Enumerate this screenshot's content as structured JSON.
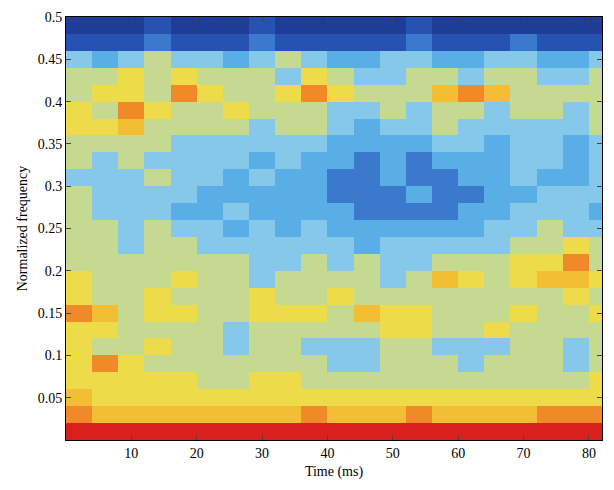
{
  "chart_data": {
    "type": "heatmap",
    "x_label": "Time (ms)",
    "y_label": "Normalized frequency",
    "x": [
      2,
      6,
      10,
      14,
      18,
      22,
      26,
      30,
      34,
      38,
      42,
      46,
      50,
      54,
      58,
      62,
      66,
      70,
      74,
      78,
      82
    ],
    "y": [
      0.01,
      0.03,
      0.05,
      0.07,
      0.09,
      0.11,
      0.13,
      0.15,
      0.17,
      0.19,
      0.21,
      0.23,
      0.25,
      0.27,
      0.29,
      0.31,
      0.33,
      0.35,
      0.37,
      0.39,
      0.41,
      0.43,
      0.45,
      0.47,
      0.49
    ],
    "cells": [
      [
        10,
        10,
        10,
        10,
        10,
        10,
        10,
        10,
        10,
        10,
        10,
        10,
        10,
        10,
        10,
        10,
        10,
        10,
        10,
        10,
        10
      ],
      [
        8,
        7,
        7,
        7,
        7,
        7,
        7,
        7,
        7,
        8,
        7,
        7,
        7,
        8,
        7,
        7,
        7,
        7,
        8,
        8,
        8
      ],
      [
        7,
        6,
        6,
        6,
        6,
        6,
        6,
        6,
        6,
        6,
        6,
        6,
        6,
        6,
        6,
        6,
        6,
        6,
        6,
        6,
        6
      ],
      [
        6,
        6,
        6,
        6,
        6,
        5,
        5,
        6,
        6,
        5,
        5,
        5,
        5,
        5,
        5,
        5,
        5,
        5,
        5,
        5,
        6
      ],
      [
        6,
        8,
        6,
        5,
        5,
        5,
        5,
        5,
        5,
        5,
        4,
        4,
        5,
        5,
        5,
        4,
        5,
        5,
        5,
        4,
        5
      ],
      [
        6,
        5,
        5,
        6,
        5,
        5,
        4,
        5,
        5,
        4,
        4,
        4,
        5,
        5,
        4,
        4,
        4,
        5,
        5,
        4,
        5
      ],
      [
        6,
        6,
        5,
        5,
        5,
        5,
        4,
        5,
        5,
        5,
        5,
        5,
        6,
        6,
        5,
        5,
        6,
        5,
        5,
        5,
        5
      ],
      [
        8,
        7,
        5,
        6,
        6,
        5,
        5,
        6,
        6,
        6,
        5,
        7,
        6,
        6,
        5,
        5,
        5,
        6,
        5,
        5,
        6
      ],
      [
        6,
        5,
        5,
        6,
        5,
        5,
        5,
        6,
        5,
        5,
        6,
        5,
        5,
        5,
        5,
        5,
        5,
        5,
        5,
        6,
        5
      ],
      [
        6,
        5,
        5,
        5,
        6,
        5,
        5,
        4,
        5,
        5,
        5,
        5,
        4,
        5,
        7,
        6,
        5,
        6,
        7,
        7,
        6
      ],
      [
        5,
        5,
        5,
        5,
        5,
        5,
        5,
        4,
        4,
        5,
        4,
        5,
        4,
        4,
        5,
        5,
        5,
        6,
        6,
        8,
        5
      ],
      [
        5,
        5,
        4,
        5,
        5,
        4,
        4,
        4,
        4,
        4,
        4,
        3,
        4,
        4,
        4,
        4,
        4,
        5,
        5,
        6,
        5
      ],
      [
        5,
        5,
        4,
        5,
        4,
        4,
        3,
        4,
        3,
        4,
        3,
        3,
        3,
        3,
        3,
        3,
        4,
        4,
        5,
        4,
        4
      ],
      [
        5,
        4,
        4,
        4,
        3,
        3,
        4,
        3,
        3,
        3,
        3,
        2,
        2,
        2,
        2,
        3,
        3,
        4,
        4,
        4,
        3
      ],
      [
        5,
        4,
        4,
        4,
        4,
        3,
        3,
        3,
        3,
        3,
        2,
        2,
        2,
        3,
        2,
        2,
        3,
        3,
        4,
        4,
        4
      ],
      [
        4,
        4,
        4,
        5,
        4,
        4,
        3,
        4,
        3,
        3,
        2,
        2,
        3,
        2,
        2,
        3,
        3,
        4,
        3,
        3,
        4
      ],
      [
        5,
        4,
        5,
        4,
        4,
        4,
        4,
        3,
        4,
        3,
        3,
        2,
        3,
        2,
        3,
        3,
        3,
        4,
        4,
        3,
        4
      ],
      [
        5,
        5,
        5,
        5,
        4,
        4,
        4,
        4,
        4,
        4,
        3,
        3,
        3,
        3,
        4,
        4,
        3,
        4,
        4,
        3,
        4
      ],
      [
        6,
        6,
        7,
        5,
        5,
        5,
        5,
        4,
        5,
        5,
        4,
        3,
        4,
        4,
        5,
        4,
        4,
        4,
        4,
        4,
        5
      ],
      [
        6,
        5,
        8,
        6,
        5,
        5,
        6,
        5,
        5,
        5,
        4,
        4,
        5,
        4,
        5,
        5,
        4,
        5,
        5,
        4,
        5
      ],
      [
        5,
        6,
        6,
        5,
        8,
        6,
        5,
        5,
        6,
        8,
        6,
        5,
        5,
        5,
        7,
        8,
        7,
        5,
        5,
        5,
        5
      ],
      [
        5,
        5,
        6,
        5,
        6,
        5,
        5,
        5,
        4,
        6,
        5,
        4,
        4,
        5,
        5,
        4,
        5,
        5,
        4,
        4,
        5
      ],
      [
        4,
        3,
        4,
        5,
        4,
        4,
        3,
        4,
        5,
        4,
        3,
        3,
        4,
        4,
        3,
        3,
        4,
        4,
        3,
        3,
        4
      ],
      [
        1,
        1,
        1,
        2,
        1,
        1,
        1,
        2,
        1,
        1,
        1,
        1,
        1,
        2,
        1,
        1,
        1,
        2,
        1,
        1,
        1
      ],
      [
        0,
        0,
        0,
        1,
        0,
        0,
        0,
        1,
        0,
        0,
        0,
        0,
        0,
        1,
        0,
        0,
        0,
        0,
        0,
        0,
        0
      ]
    ],
    "zlim": [
      0,
      10
    ],
    "xlim": [
      0,
      82
    ],
    "ylim": [
      0,
      0.5
    ],
    "xticks": [
      10,
      20,
      30,
      40,
      50,
      60,
      70,
      80
    ],
    "yticks": [
      0.05,
      0.1,
      0.15,
      0.2,
      0.25,
      0.3,
      0.35,
      0.4,
      0.45,
      0.5
    ]
  }
}
